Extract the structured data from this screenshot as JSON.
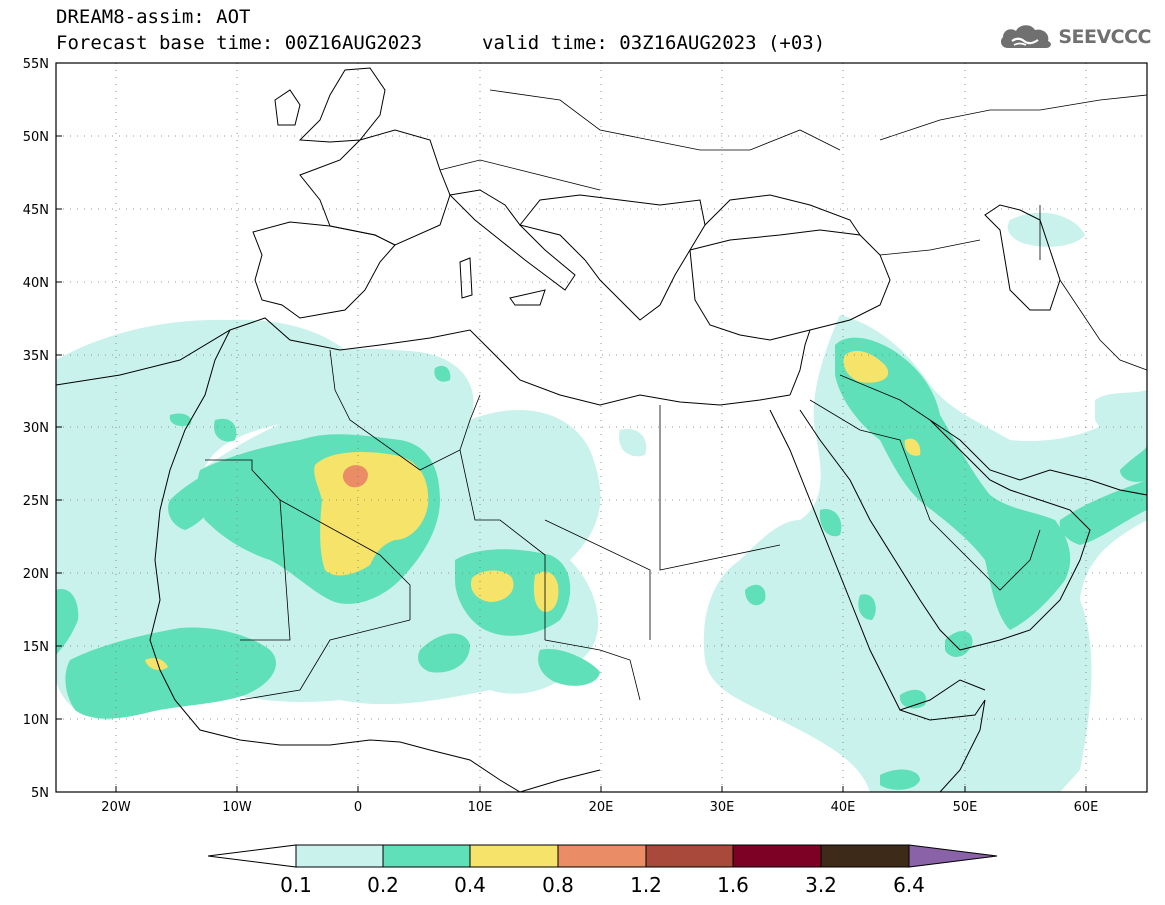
{
  "title": {
    "line1": "DREAM8-assim: AOT",
    "line2": "Forecast base time: 00Z16AUG2023",
    "valid": "valid time: 03Z16AUG2023 (+03)"
  },
  "logo": {
    "text": "SEEVCCC",
    "icon": "cloud-icon",
    "color": "#707070"
  },
  "map": {
    "lon_range": [
      -25,
      65
    ],
    "lat_range": [
      5,
      55
    ],
    "lat_ticks": [
      5,
      10,
      15,
      20,
      25,
      30,
      35,
      40,
      45,
      50,
      55
    ],
    "lat_labels": [
      "5N",
      "10N",
      "15N",
      "20N",
      "25N",
      "30N",
      "35N",
      "40N",
      "45N",
      "50N",
      "55N"
    ],
    "lon_ticks": [
      -20,
      -10,
      0,
      10,
      20,
      30,
      40,
      50,
      60
    ],
    "lon_labels": [
      "20W",
      "10W",
      "0",
      "10E",
      "20E",
      "30E",
      "40E",
      "50E",
      "60E"
    ],
    "grid": "dotted"
  },
  "colorbar": {
    "labels": [
      "0.1",
      "0.2",
      "0.4",
      "0.8",
      "1.2",
      "1.6",
      "3.2",
      "6.4"
    ],
    "colors": [
      "#ffffff",
      "#c8f2eb",
      "#5fe0b9",
      "#f5e36a",
      "#ea8c66",
      "#a8493c",
      "#7d0025",
      "#3d2a19",
      "#8a62a8"
    ]
  }
}
